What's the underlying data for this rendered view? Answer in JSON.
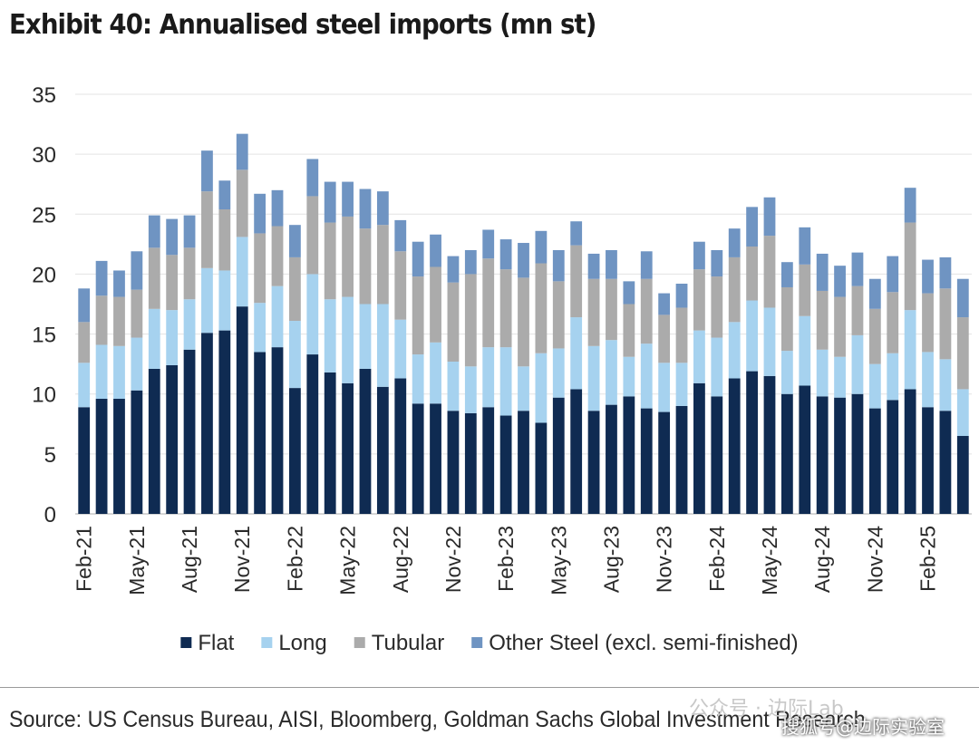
{
  "title": "Exhibit 40: Annualised steel imports (mn st)",
  "source": "Source: US Census Bureau, AISI, Bloomberg, Goldman Sachs Global Investment Research",
  "watermark": {
    "line1": "公众号 · 边际Lab",
    "line2": "搜狐号@边际实验室"
  },
  "colors": {
    "Flat": "#0f2b52",
    "Long": "#a6d2ef",
    "Tubular": "#ababab",
    "Other Steel (excl. semi-finished)": "#6f94c2"
  },
  "chart_data": {
    "type": "bar",
    "stacked": true,
    "ylim": [
      0,
      35
    ],
    "yticks": [
      0,
      5,
      10,
      15,
      20,
      25,
      30,
      35
    ],
    "grid": true,
    "legend_position": "bottom",
    "x_tick_labels": [
      "Feb-21",
      "May-21",
      "Aug-21",
      "Nov-21",
      "Feb-22",
      "May-22",
      "Aug-22",
      "Nov-22",
      "Feb-23",
      "May-23",
      "Aug-23",
      "Nov-23",
      "Feb-24",
      "May-24",
      "Aug-24",
      "Nov-24",
      "Feb-25"
    ],
    "categories": [
      "Feb-21",
      "Mar-21",
      "Apr-21",
      "May-21",
      "Jun-21",
      "Jul-21",
      "Aug-21",
      "Sep-21",
      "Oct-21",
      "Nov-21",
      "Dec-21",
      "Jan-22",
      "Feb-22",
      "Mar-22",
      "Apr-22",
      "May-22",
      "Jun-22",
      "Jul-22",
      "Aug-22",
      "Sep-22",
      "Oct-22",
      "Nov-22",
      "Dec-22",
      "Jan-23",
      "Feb-23",
      "Mar-23",
      "Apr-23",
      "May-23",
      "Jun-23",
      "Jul-23",
      "Aug-23",
      "Sep-23",
      "Oct-23",
      "Nov-23",
      "Dec-23",
      "Jan-24",
      "Feb-24",
      "Mar-24",
      "Apr-24",
      "May-24",
      "Jun-24",
      "Jul-24",
      "Aug-24",
      "Sep-24",
      "Oct-24",
      "Nov-24",
      "Dec-24",
      "Jan-25",
      "Feb-25",
      "Mar-25",
      "Apr-25"
    ],
    "series": [
      {
        "name": "Flat",
        "values": [
          8.9,
          9.6,
          9.6,
          10.3,
          12.1,
          12.4,
          13.7,
          15.1,
          15.3,
          17.3,
          13.5,
          13.9,
          10.5,
          13.3,
          11.8,
          10.9,
          12.1,
          10.6,
          11.3,
          9.2,
          9.2,
          8.6,
          8.4,
          8.9,
          8.2,
          8.6,
          7.6,
          9.7,
          10.4,
          8.6,
          9.1,
          9.8,
          8.8,
          8.5,
          9.0,
          10.9,
          9.8,
          11.3,
          11.9,
          11.5,
          10.0,
          10.7,
          9.8,
          9.7,
          10.0,
          8.8,
          9.5,
          10.4,
          8.9,
          8.6,
          6.5
        ]
      },
      {
        "name": "Long",
        "values": [
          3.7,
          4.5,
          4.4,
          4.4,
          5.0,
          4.6,
          4.2,
          5.4,
          5.0,
          5.8,
          4.1,
          5.1,
          5.6,
          6.7,
          6.1,
          7.2,
          5.4,
          6.9,
          4.9,
          4.1,
          5.1,
          4.1,
          3.9,
          5.0,
          5.7,
          3.7,
          5.8,
          4.1,
          6.0,
          5.4,
          5.4,
          3.3,
          5.4,
          4.1,
          3.6,
          4.4,
          4.9,
          4.7,
          5.9,
          5.7,
          3.6,
          5.8,
          3.9,
          3.4,
          4.9,
          3.7,
          3.9,
          6.6,
          4.6,
          4.3,
          3.9
        ]
      },
      {
        "name": "Tubular",
        "values": [
          3.4,
          4.1,
          4.1,
          4.0,
          5.1,
          4.6,
          4.3,
          6.4,
          5.1,
          5.6,
          5.8,
          5.0,
          5.3,
          6.5,
          6.4,
          6.7,
          6.3,
          6.6,
          5.7,
          6.5,
          6.3,
          6.6,
          7.7,
          7.4,
          6.5,
          7.4,
          7.5,
          5.6,
          6.0,
          5.6,
          5.1,
          4.4,
          5.4,
          4.0,
          4.6,
          5.1,
          5.1,
          5.4,
          4.5,
          6.0,
          5.3,
          4.3,
          4.9,
          5.0,
          4.1,
          4.6,
          5.1,
          7.3,
          4.9,
          5.9,
          6.0
        ]
      },
      {
        "name": "Other Steel (excl. semi-finished)",
        "values": [
          2.8,
          2.9,
          2.2,
          3.2,
          2.7,
          3.0,
          2.7,
          3.4,
          2.4,
          3.0,
          3.3,
          3.0,
          2.7,
          3.1,
          3.4,
          2.9,
          3.3,
          2.8,
          2.6,
          2.9,
          2.7,
          2.2,
          2.0,
          2.4,
          2.5,
          2.9,
          2.7,
          2.6,
          2.0,
          2.1,
          2.4,
          1.9,
          2.3,
          1.8,
          2.0,
          2.3,
          2.2,
          2.4,
          3.3,
          3.2,
          2.1,
          3.1,
          3.1,
          2.6,
          2.8,
          2.5,
          3.0,
          2.9,
          2.8,
          2.6,
          3.2
        ]
      }
    ]
  }
}
